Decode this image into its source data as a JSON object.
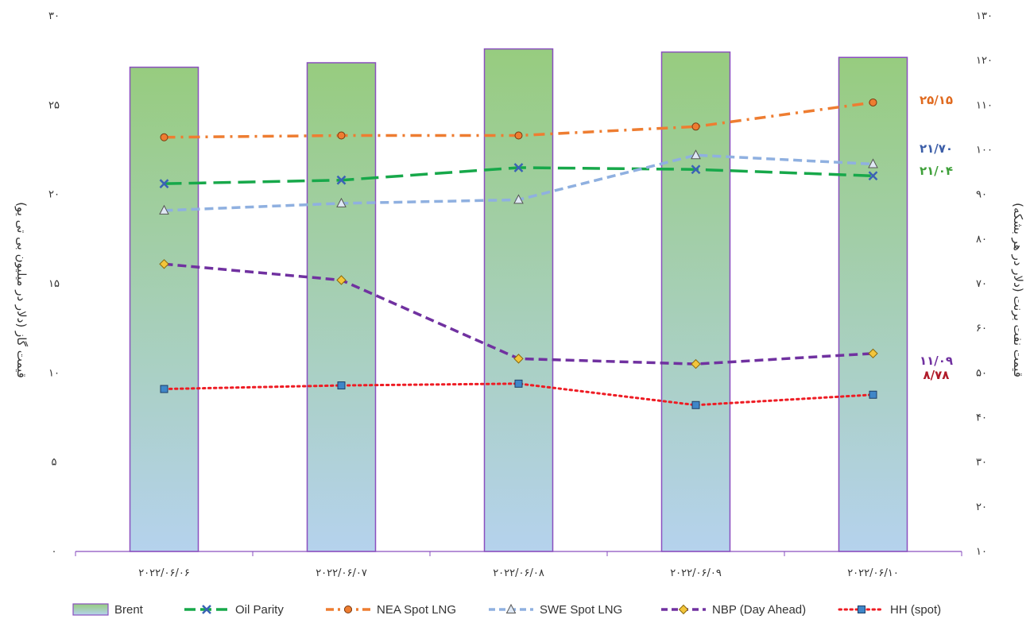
{
  "chart_data": {
    "type": "bar",
    "categories": [
      "۲۰۲۲/۰۶/۰۶",
      "۲۰۲۲/۰۶/۰۷",
      "۲۰۲۲/۰۶/۰۸",
      "۲۰۲۲/۰۶/۰۹",
      "۲۰۲۲/۰۶/۱۰"
    ],
    "left_axis": {
      "label": "قیمت گاز (دلار در میلیون بی تی یو)",
      "range": [
        0,
        30
      ],
      "ticks": [
        0,
        5,
        10,
        15,
        20,
        25,
        30
      ],
      "tick_labels": [
        "۰",
        "۵",
        "۱۰",
        "۱۵",
        "۲۰",
        "۲۵",
        "۳۰"
      ]
    },
    "right_axis": {
      "label": "قیمت نفت برنت (دلار در هر بشکه)",
      "range": [
        10,
        130
      ],
      "ticks": [
        10,
        20,
        30,
        40,
        50,
        60,
        70,
        80,
        90,
        100,
        110,
        120,
        130
      ],
      "tick_labels": [
        "۱۰",
        "۲۰",
        "۳۰",
        "۴۰",
        "۵۰",
        "۶۰",
        "۷۰",
        "۸۰",
        "۹۰",
        "۱۰۰",
        "۱۱۰",
        "۱۲۰",
        "۱۳۰"
      ]
    },
    "bars": {
      "name": "Brent",
      "axis": "right",
      "values": [
        118.5,
        119.5,
        122.6,
        121.9,
        120.7
      ],
      "colors": {
        "top": "#97cc7f",
        "bottom": "#b5d2ed",
        "stroke": "#8a4fbf"
      }
    },
    "series": [
      {
        "name": "Oil Parity",
        "axis": "left",
        "values": [
          20.6,
          20.8,
          21.5,
          21.4,
          21.04
        ],
        "color": "#17a84a",
        "marker": "x",
        "dash": "long-dash"
      },
      {
        "name": "NEA Spot LNG",
        "axis": "left",
        "values": [
          23.2,
          23.3,
          23.3,
          23.8,
          25.15
        ],
        "color": "#ee7d31",
        "marker": "circle",
        "dash": "dash-dot"
      },
      {
        "name": "SWE Spot LNG",
        "axis": "left",
        "values": [
          19.1,
          19.5,
          19.7,
          22.2,
          21.7
        ],
        "color": "#8fb0e0",
        "marker": "triangle",
        "dash": "dash"
      },
      {
        "name": "NBP (Day Ahead)",
        "axis": "left",
        "values": [
          16.1,
          15.2,
          10.8,
          10.5,
          11.09
        ],
        "color": "#7031a0",
        "marker": "diamond",
        "dash": "dash"
      },
      {
        "name": "HH (spot)",
        "axis": "left",
        "values": [
          9.1,
          9.3,
          9.4,
          8.2,
          8.78
        ],
        "color": "#ee1c24",
        "marker": "square",
        "dash": "dot"
      }
    ],
    "end_labels": [
      {
        "text": "۲۵/۱۵",
        "color": "#e06a1f"
      },
      {
        "text": "۲۱/۷۰",
        "color": "#3c5ea8"
      },
      {
        "text": "۲۱/۰۴",
        "color": "#3fa03a"
      },
      {
        "text": "۱۱/۰۹",
        "color": "#7031a0"
      },
      {
        "text": "۸/۷۸",
        "color": "#b01a28"
      }
    ],
    "legend": {
      "position": "bottom",
      "items": [
        "Brent",
        "Oil Parity",
        "NEA Spot LNG",
        "SWE Spot LNG",
        "NBP (Day Ahead)",
        "HH (spot)"
      ]
    },
    "grid": false
  }
}
